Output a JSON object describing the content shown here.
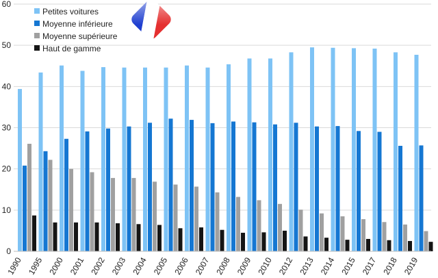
{
  "chart_data": {
    "type": "bar",
    "title": "",
    "xlabel": "",
    "ylabel": "",
    "ylim": [
      0,
      60
    ],
    "yticks": [
      0,
      10,
      20,
      30,
      40,
      50,
      60
    ],
    "grid": true,
    "legend_position": "top-left",
    "categories": [
      "1990",
      "1995",
      "2000",
      "2001",
      "2002",
      "2003",
      "2004",
      "2005",
      "2006",
      "2007",
      "2008",
      "2009",
      "2010",
      "2012",
      "2013",
      "2014",
      "2015",
      "2017",
      "2018",
      "2019"
    ],
    "series": [
      {
        "name": "Petites voitures",
        "color": "#7ec3f5",
        "values": [
          39.4,
          43.4,
          45.1,
          43.8,
          44.7,
          44.6,
          44.6,
          44.6,
          45.1,
          44.6,
          45.4,
          46.8,
          46.8,
          48.3,
          49.5,
          49.4,
          49.3,
          49.2,
          48.3,
          47.7
        ]
      },
      {
        "name": "Moyenne inférieure",
        "color": "#1577d2",
        "values": [
          20.8,
          24.3,
          27.3,
          29.1,
          29.8,
          30.3,
          31.2,
          32.2,
          31.9,
          31.1,
          31.5,
          31.3,
          30.8,
          31.2,
          30.3,
          30.4,
          29.2,
          29.0,
          25.6,
          25.7
        ]
      },
      {
        "name": "Moyenne supérieure",
        "color": "#a0a0a0",
        "values": [
          26.1,
          22.2,
          20.0,
          19.2,
          17.8,
          17.8,
          16.9,
          16.2,
          15.7,
          14.3,
          13.2,
          12.4,
          11.5,
          10.1,
          9.2,
          8.5,
          7.8,
          7.1,
          6.5,
          4.9
        ]
      },
      {
        "name": "Haut de gamme",
        "color": "#151515",
        "values": [
          8.7,
          7.0,
          7.0,
          7.0,
          6.8,
          6.6,
          6.4,
          5.6,
          5.8,
          5.2,
          4.5,
          4.6,
          5.0,
          3.6,
          3.3,
          2.8,
          3.0,
          2.7,
          2.5,
          2.3
        ]
      }
    ]
  },
  "icons": {
    "logo": "france-flag-icon"
  }
}
